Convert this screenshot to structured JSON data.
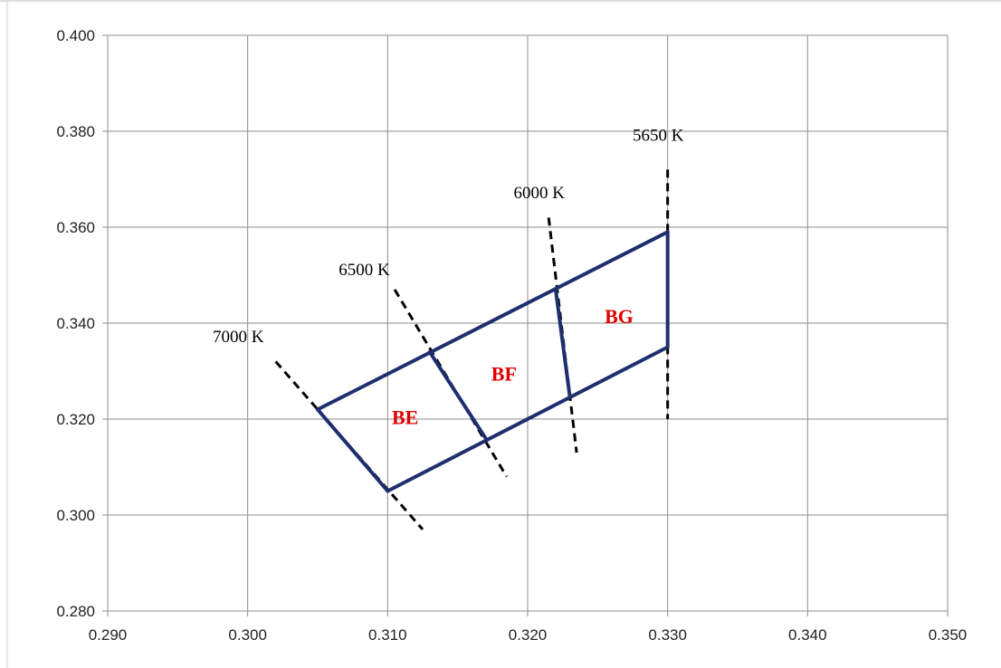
{
  "chart_data": {
    "type": "line",
    "title": "",
    "xlabel": "",
    "ylabel": "",
    "xlim": [
      0.29,
      0.35
    ],
    "ylim": [
      0.28,
      0.4
    ],
    "x_ticks": [
      "0.290",
      "0.300",
      "0.310",
      "0.320",
      "0.330",
      "0.340",
      "0.350"
    ],
    "y_ticks": [
      "0.280",
      "0.300",
      "0.320",
      "0.340",
      "0.360",
      "0.380",
      "0.400"
    ],
    "grid": true,
    "legend": "none",
    "outline_color": "#1f2f6e",
    "isotherm_color": "#000000",
    "label_color": "#e00000",
    "outline_segments": [
      {
        "x": [
          0.305,
          0.33
        ],
        "y": [
          0.322,
          0.359
        ]
      },
      {
        "x": [
          0.31,
          0.33
        ],
        "y": [
          0.305,
          0.335
        ]
      },
      {
        "x": [
          0.305,
          0.31
        ],
        "y": [
          0.322,
          0.305
        ]
      },
      {
        "x": [
          0.313,
          0.317
        ],
        "y": [
          0.334,
          0.316
        ]
      },
      {
        "x": [
          0.322,
          0.323
        ],
        "y": [
          0.347,
          0.325
        ]
      },
      {
        "x": [
          0.33,
          0.33
        ],
        "y": [
          0.359,
          0.335
        ]
      }
    ],
    "isotherms": [
      {
        "label": "7000 K",
        "x": [
          0.302,
          0.3125
        ],
        "y": [
          0.332,
          0.297
        ],
        "label_x": 0.2975,
        "label_y": 0.336
      },
      {
        "label": "6500 K",
        "x": [
          0.3105,
          0.3185
        ],
        "y": [
          0.347,
          0.308
        ],
        "label_x": 0.3065,
        "label_y": 0.35
      },
      {
        "label": "6000 K",
        "x": [
          0.3215,
          0.3235
        ],
        "y": [
          0.362,
          0.313
        ],
        "label_x": 0.319,
        "label_y": 0.366
      },
      {
        "label": "5650 K",
        "x": [
          0.33,
          0.33
        ],
        "y": [
          0.372,
          0.32
        ],
        "label_x": 0.3275,
        "label_y": 0.378
      }
    ],
    "bins": [
      {
        "label": "BE",
        "x": 0.3103,
        "y": 0.319
      },
      {
        "label": "BF",
        "x": 0.3174,
        "y": 0.328
      },
      {
        "label": "BG",
        "x": 0.3255,
        "y": 0.34
      }
    ]
  }
}
